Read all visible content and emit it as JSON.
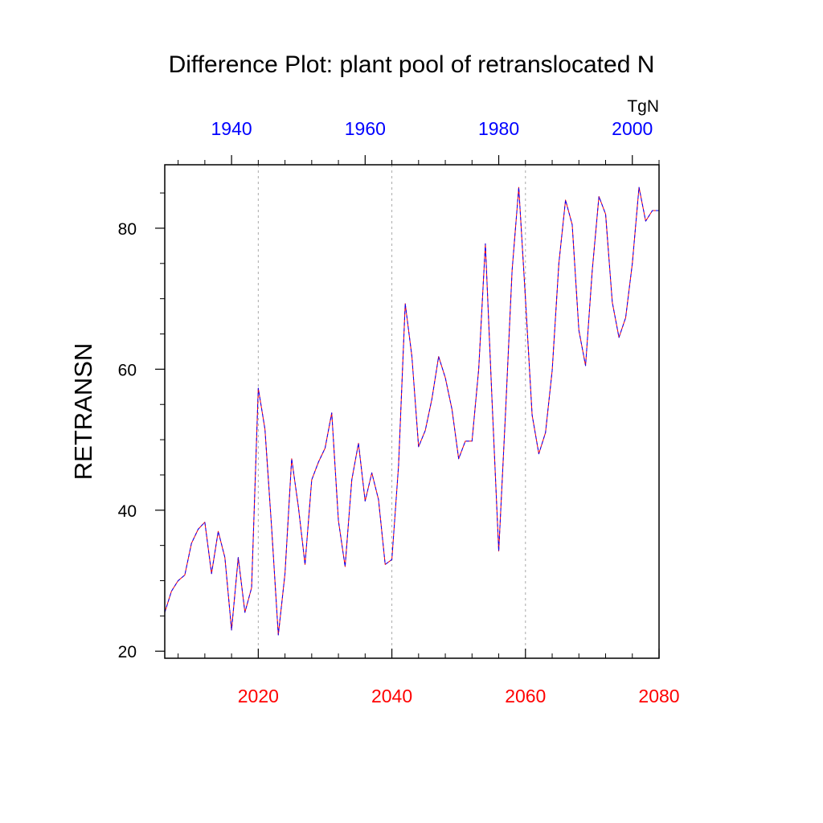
{
  "chart_data": {
    "type": "line",
    "title": "Difference Plot: plant pool of retranslocated N",
    "units": "TgN",
    "ylabel": "RETRANSN",
    "ylim": [
      19,
      89
    ],
    "yticks": [
      20,
      40,
      60,
      80
    ],
    "yticks_minor": [
      25,
      30,
      35,
      45,
      50,
      55,
      65,
      70,
      75,
      85
    ],
    "xlabel_bottom": "",
    "xlim_bottom": [
      2006,
      2080
    ],
    "xticks_bottom": [
      2020,
      2040,
      2060,
      2080
    ],
    "xlim_top": [
      1930,
      2004
    ],
    "xticks_top": [
      1940,
      1960,
      1980,
      2000
    ],
    "grid": "vertical dotted at major bottom ticks",
    "colors": {
      "series_a": "#ff0000",
      "series_b": "#0000ff",
      "top_axis_labels": "#0000ff",
      "bottom_axis_labels": "#ff0000"
    },
    "series": [
      {
        "name": "series_a",
        "x": [
          2006,
          2007,
          2008,
          2009,
          2010,
          2011,
          2012,
          2013,
          2014,
          2015,
          2016,
          2017,
          2018,
          2019,
          2020,
          2021,
          2022,
          2023,
          2024,
          2025,
          2026,
          2027,
          2028,
          2029,
          2030,
          2031,
          2032,
          2033,
          2034,
          2035,
          2036,
          2037,
          2038,
          2039,
          2040,
          2041,
          2042,
          2043,
          2044,
          2045,
          2046,
          2047,
          2048,
          2049,
          2050,
          2051,
          2052,
          2053,
          2054,
          2055,
          2056,
          2057,
          2058,
          2059,
          2060,
          2061,
          2062,
          2063,
          2064,
          2065,
          2066,
          2067,
          2068,
          2069,
          2070,
          2071,
          2072,
          2073,
          2074,
          2075,
          2076,
          2077,
          2078,
          2079,
          2080
        ],
        "values": [
          25.5,
          28.5,
          30.0,
          30.8,
          35.3,
          37.3,
          38.3,
          31.0,
          37.0,
          33.3,
          23.0,
          33.3,
          25.5,
          29.0,
          57.3,
          51.5,
          37.5,
          22.3,
          31.0,
          47.3,
          40.5,
          32.3,
          44.3,
          46.8,
          48.8,
          53.8,
          38.5,
          32.0,
          44.3,
          49.5,
          41.3,
          45.3,
          41.5,
          32.3,
          33.0,
          46.3,
          69.3,
          61.8,
          49.0,
          51.3,
          55.8,
          61.8,
          58.8,
          54.3,
          47.3,
          49.8,
          49.8,
          60.0,
          77.8,
          55.5,
          34.2,
          53.5,
          74.0,
          85.8,
          70.0,
          53.5,
          48.0,
          51.0,
          59.8,
          75.0,
          84.0,
          80.5,
          65.5,
          60.5,
          74.0,
          84.5,
          82.0,
          69.5,
          64.5,
          67.3,
          75.0,
          85.8,
          81.0,
          82.5,
          82.5
        ]
      },
      {
        "name": "series_b",
        "x": [
          2006,
          2007,
          2008,
          2009,
          2010,
          2011,
          2012,
          2013,
          2014,
          2015,
          2016,
          2017,
          2018,
          2019,
          2020,
          2021,
          2022,
          2023,
          2024,
          2025,
          2026,
          2027,
          2028,
          2029,
          2030,
          2031,
          2032,
          2033,
          2034,
          2035,
          2036,
          2037,
          2038,
          2039,
          2040,
          2041,
          2042,
          2043,
          2044,
          2045,
          2046,
          2047,
          2048,
          2049,
          2050,
          2051,
          2052,
          2053,
          2054,
          2055,
          2056,
          2057,
          2058,
          2059,
          2060,
          2061,
          2062,
          2063,
          2064,
          2065,
          2066,
          2067,
          2068,
          2069,
          2070,
          2071,
          2072,
          2073,
          2074,
          2075,
          2076,
          2077,
          2078,
          2079,
          2080
        ],
        "values": [
          25.5,
          28.5,
          30.0,
          30.8,
          35.3,
          37.3,
          38.3,
          31.0,
          37.0,
          33.3,
          23.0,
          33.3,
          25.5,
          29.0,
          57.3,
          51.5,
          37.5,
          22.3,
          31.0,
          47.3,
          40.5,
          32.3,
          44.3,
          46.8,
          48.8,
          53.8,
          38.5,
          32.0,
          44.3,
          49.5,
          41.3,
          45.3,
          41.5,
          32.3,
          33.0,
          46.3,
          69.3,
          61.8,
          49.0,
          51.3,
          55.8,
          61.8,
          58.8,
          54.3,
          47.3,
          49.8,
          49.8,
          60.0,
          77.8,
          55.5,
          34.2,
          53.5,
          74.0,
          85.8,
          70.0,
          53.5,
          48.0,
          51.0,
          59.8,
          75.0,
          84.0,
          80.5,
          65.5,
          60.5,
          74.0,
          84.5,
          82.0,
          69.5,
          64.5,
          67.3,
          75.0,
          85.8,
          81.0,
          82.5,
          82.5
        ]
      }
    ]
  }
}
